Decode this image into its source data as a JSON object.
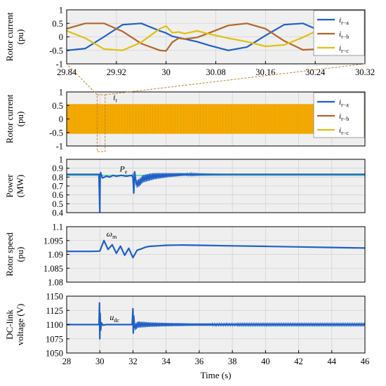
{
  "colors": {
    "blue": "#1f5fc8",
    "brown": "#b5652a",
    "yellow": "#e0c010",
    "orange": "#f5a400",
    "green_ref": "#5fd9a0",
    "dash": "#c08030",
    "plot_bg": "#efefef",
    "grid": "#d2d2d2"
  },
  "chart_data": [
    {
      "id": "zoom-rotor-current",
      "type": "line",
      "ylabel": [
        "Rotor current",
        "(pu)"
      ],
      "xlim": [
        29.84,
        30.32
      ],
      "ylim": [
        -1,
        1
      ],
      "xticks": [
        "29.84",
        "29.92",
        "30",
        "30.08",
        "30.16",
        "30.24",
        "30.32"
      ],
      "xtick_values": [
        29.84,
        29.92,
        30.0,
        30.08,
        30.16,
        30.24,
        30.32
      ],
      "yticks": [
        "1",
        "0.5",
        "0",
        "-0.5",
        "-1"
      ],
      "ytick_values": [
        1,
        0.5,
        0,
        -0.5,
        -1
      ],
      "grid": true,
      "legend_position": "top-right",
      "legend": [
        {
          "base": "i",
          "sub": "r−a"
        },
        {
          "base": "i",
          "sub": "r−b"
        },
        {
          "base": "i",
          "sub": "r−c"
        }
      ],
      "series": [
        {
          "name": "ir-a",
          "x": [
            29.84,
            29.87,
            29.9,
            29.93,
            29.96,
            29.99,
            30.0,
            30.01,
            30.02,
            30.03,
            30.05,
            30.07,
            30.1,
            30.13,
            30.16,
            30.19,
            30.22,
            30.25,
            30.28,
            30.32
          ],
          "y": [
            -0.5,
            -0.43,
            0.0,
            0.45,
            0.5,
            0.22,
            0.14,
            0.02,
            -0.03,
            -0.08,
            -0.18,
            -0.32,
            -0.5,
            -0.38,
            0.05,
            0.45,
            0.5,
            0.2,
            -0.25,
            -0.5
          ]
        },
        {
          "name": "ir-b",
          "x": [
            29.84,
            29.87,
            29.9,
            29.93,
            29.96,
            29.99,
            30.0,
            30.01,
            30.02,
            30.03,
            30.05,
            30.07,
            30.1,
            30.13,
            30.16,
            30.19,
            30.22,
            30.25,
            30.28,
            30.32
          ],
          "y": [
            0.3,
            0.5,
            0.5,
            0.2,
            -0.25,
            -0.5,
            -0.52,
            -0.2,
            -0.05,
            -0.08,
            -0.02,
            0.15,
            0.42,
            0.5,
            0.3,
            -0.15,
            -0.48,
            -0.45,
            -0.05,
            0.45
          ]
        },
        {
          "name": "ir-c",
          "x": [
            29.84,
            29.87,
            29.9,
            29.93,
            29.96,
            29.99,
            30.0,
            30.01,
            30.02,
            30.03,
            30.05,
            30.07,
            30.1,
            30.13,
            30.16,
            30.19,
            30.22,
            30.25,
            30.28,
            30.32
          ],
          "y": [
            0.22,
            -0.05,
            -0.45,
            -0.5,
            -0.2,
            0.3,
            0.4,
            0.15,
            0.18,
            0.12,
            0.22,
            0.1,
            -0.05,
            -0.18,
            -0.35,
            -0.3,
            -0.02,
            0.3,
            0.48,
            0.05
          ]
        }
      ]
    },
    {
      "id": "rotor-current",
      "type": "line",
      "ylabel": [
        "Rotor current",
        "(pu)"
      ],
      "xlim": [
        28,
        46
      ],
      "ylim": [
        -1,
        1
      ],
      "yticks": [
        "1",
        "0.5",
        "0",
        "-0.5",
        "-1"
      ],
      "ytick_values": [
        1,
        0.5,
        0,
        -0.5,
        -1
      ],
      "grid": true,
      "legend_position": "top-right",
      "legend": [
        {
          "base": "i",
          "sub": "r−a"
        },
        {
          "base": "i",
          "sub": "r−b"
        },
        {
          "base": "i",
          "sub": "r−c"
        }
      ],
      "annotation": {
        "base": "i",
        "sub": "r",
        "x": 30.8,
        "y": 0.7
      },
      "series": [
        {
          "name": "ir-c envelope",
          "x": [
            28,
            46
          ],
          "y_upper": [
            0.55,
            0.55
          ],
          "y_lower": [
            -0.55,
            -0.55
          ]
        }
      ],
      "zoom_window": [
        29.84,
        30.32
      ]
    },
    {
      "id": "power",
      "type": "line",
      "ylabel": [
        "Power",
        "(MW)"
      ],
      "xlim": [
        28,
        46
      ],
      "ylim": [
        0.4,
        1.0
      ],
      "yticks": [
        "1",
        "0.9",
        "0.8",
        "0.7",
        "0.6",
        "0.5",
        "0.4"
      ],
      "ytick_values": [
        1.0,
        0.9,
        0.8,
        0.7,
        0.6,
        0.5,
        0.4
      ],
      "grid": true,
      "reference": 0.82,
      "annotation": {
        "base": "P",
        "sub": "e",
        "x": 31.2,
        "y": 0.86
      },
      "series": [
        {
          "name": "Pe",
          "x": [
            28,
            29.95,
            30.0,
            30.02,
            30.05,
            30.15,
            30.4,
            30.6,
            30.8,
            31.0,
            31.3,
            31.6,
            31.9,
            32.0,
            32.05,
            32.1,
            32.2,
            32.4,
            32.6,
            32.8,
            33.0,
            33.3,
            33.6,
            34.0,
            34.5,
            35.0,
            36.0,
            38.0,
            46.0
          ],
          "y": [
            0.83,
            0.83,
            0.4,
            0.81,
            0.85,
            0.79,
            0.81,
            0.8,
            0.82,
            0.81,
            0.82,
            0.81,
            0.82,
            0.8,
            0.62,
            0.86,
            0.72,
            0.74,
            0.78,
            0.79,
            0.8,
            0.81,
            0.815,
            0.82,
            0.825,
            0.83,
            0.83,
            0.83,
            0.83
          ]
        }
      ],
      "oscillation_envelope": {
        "x": [
          32.0,
          33.0,
          34.0,
          35.0,
          36.0,
          38.0
        ],
        "amp": [
          0.045,
          0.04,
          0.025,
          0.015,
          0.008,
          0.0
        ]
      }
    },
    {
      "id": "rotor-speed",
      "type": "line",
      "ylabel": [
        "Rotor speed",
        "(pu)"
      ],
      "xlim": [
        28,
        46
      ],
      "ylim": [
        1.08,
        1.1
      ],
      "yticks": [
        "1.1",
        "1.095",
        "1.09",
        "1.085",
        "1.08"
      ],
      "ytick_values": [
        1.1,
        1.095,
        1.09,
        1.085,
        1.08
      ],
      "grid": true,
      "annotation": {
        "base": "ω",
        "sub": "m",
        "x": 30.4,
        "y": 1.0965
      },
      "series": [
        {
          "name": "wm",
          "x": [
            28,
            29.5,
            30.0,
            30.25,
            30.5,
            30.75,
            31.0,
            31.25,
            31.5,
            31.75,
            32.0,
            32.25,
            32.5,
            32.75,
            33.0,
            33.5,
            34.0,
            35.0,
            36.0,
            38.0,
            40.0,
            42.0,
            44.0,
            46.0
          ],
          "y": [
            1.0911,
            1.0911,
            1.0912,
            1.095,
            1.0918,
            1.0935,
            1.0904,
            1.093,
            1.0897,
            1.0922,
            1.0888,
            1.0915,
            1.092,
            1.0926,
            1.0929,
            1.0931,
            1.0933,
            1.0934,
            1.0933,
            1.0931,
            1.0929,
            1.0927,
            1.0925,
            1.0923
          ]
        }
      ]
    },
    {
      "id": "dc-link-voltage",
      "type": "line",
      "ylabel": [
        "DC-link",
        "voltage (V)"
      ],
      "xlim": [
        28,
        46
      ],
      "ylim": [
        1050,
        1150
      ],
      "xticks": [
        "28",
        "30",
        "32",
        "34",
        "36",
        "38",
        "40",
        "42",
        "44",
        "46"
      ],
      "xtick_values": [
        28,
        30,
        32,
        34,
        36,
        38,
        40,
        42,
        44,
        46
      ],
      "xlabel": "Time (s)",
      "yticks": [
        "1150",
        "1125",
        "1100",
        "1075",
        "1050"
      ],
      "ytick_values": [
        1150,
        1125,
        1100,
        1075,
        1050
      ],
      "grid": true,
      "reference": 1100,
      "annotation": {
        "base": "u",
        "sub": "dc",
        "x": 30.6,
        "y": 1108
      },
      "series": [
        {
          "name": "udc",
          "x": [
            28,
            29.95,
            29.98,
            30.0,
            30.02,
            30.05,
            30.1,
            30.2,
            30.4,
            31.0,
            31.95,
            32.0,
            32.02,
            32.05,
            32.1,
            32.3,
            33.0,
            46.0
          ],
          "y": [
            1100,
            1100,
            1138,
            1075,
            1120,
            1090,
            1103,
            1099,
            1100,
            1100,
            1100,
            1128,
            1085,
            1115,
            1095,
            1100,
            1100,
            1100
          ]
        }
      ],
      "oscillation_envelope": {
        "x": [
          32.1,
          33.0,
          34.0,
          35.5,
          37.0,
          40.0,
          46.0
        ],
        "amp": [
          6,
          4,
          3,
          2.2,
          2,
          1.8,
          1.8
        ]
      }
    }
  ]
}
